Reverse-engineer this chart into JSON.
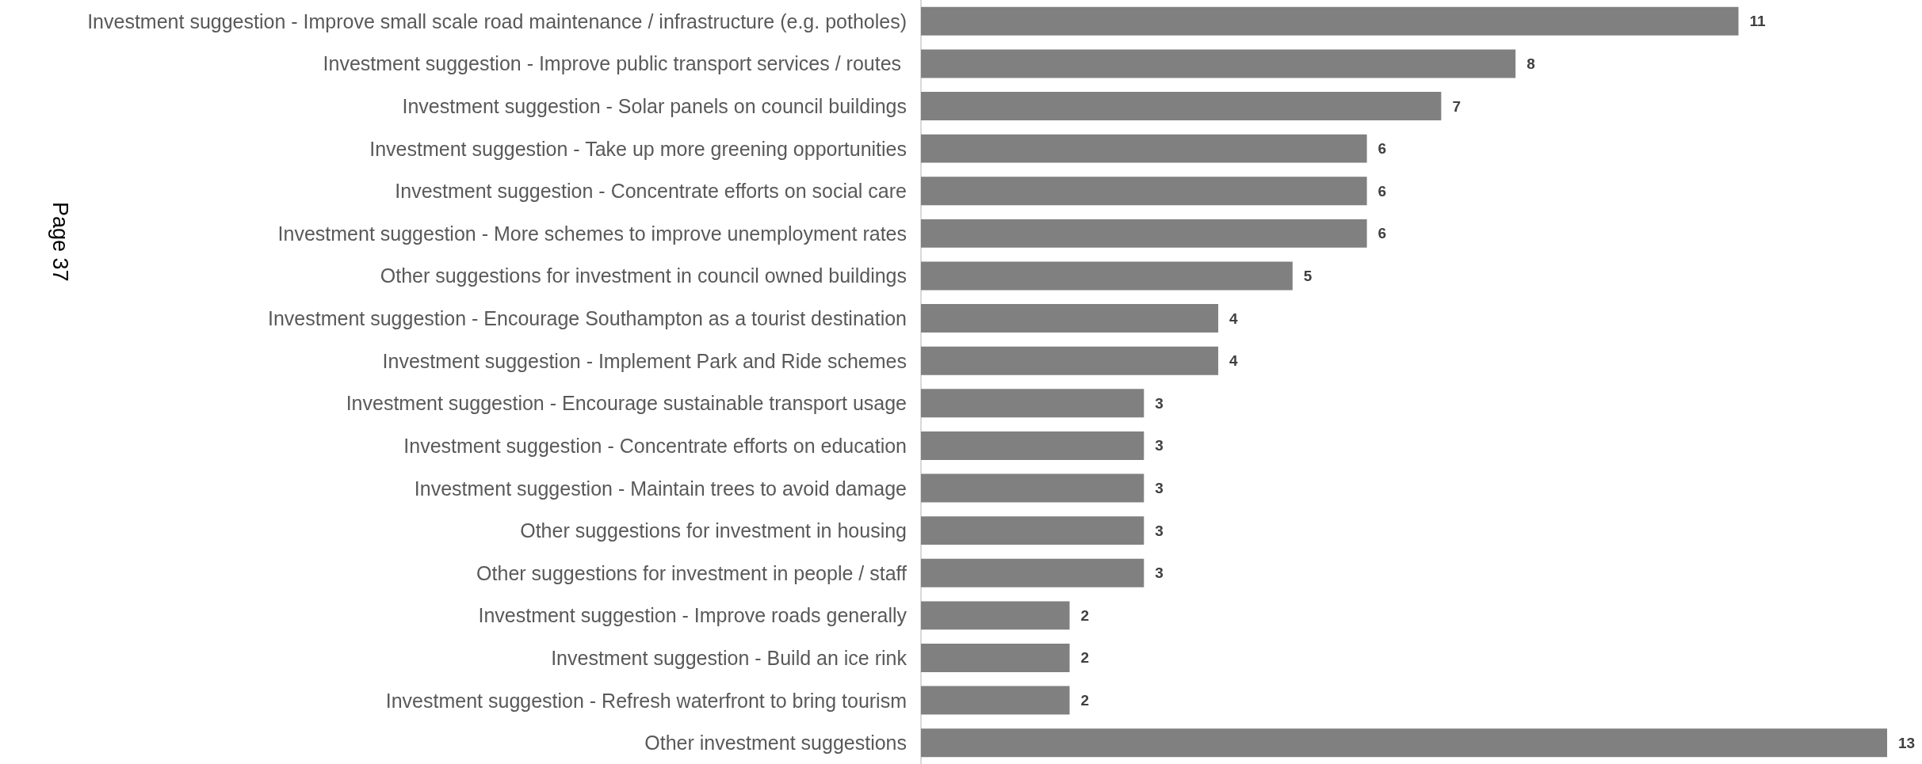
{
  "chart_data": {
    "type": "bar",
    "orientation": "horizontal",
    "categories": [
      "Investment suggestion - Improve small scale road maintenance / infrastructure (e.g. potholes)",
      "Investment suggestion - Improve public transport services / routes ",
      "Investment suggestion - Solar panels on council buildings",
      "Investment suggestion - Take up more greening opportunities",
      "Investment suggestion - Concentrate efforts on social care",
      "Investment suggestion - More schemes to improve unemployment rates",
      "Other suggestions for investment in council owned buildings",
      "Investment suggestion - Encourage Southampton as a tourist destination",
      "Investment suggestion - Implement Park and Ride schemes",
      "Investment suggestion - Encourage sustainable transport usage",
      "Investment suggestion - Concentrate efforts on education",
      "Investment suggestion - Maintain trees to avoid damage",
      "Other suggestions for investment in housing",
      "Other suggestions for investment in people / staff",
      "Investment suggestion - Improve roads generally",
      "Investment suggestion - Build an ice rink",
      "Investment suggestion - Refresh waterfront to bring tourism",
      "Other investment suggestions"
    ],
    "values": [
      11,
      8,
      7,
      6,
      6,
      6,
      5,
      4,
      4,
      3,
      3,
      3,
      3,
      3,
      2,
      2,
      2,
      13
    ],
    "color": "#808080",
    "data_labels": true,
    "tick_labels": "y",
    "annotations": [
      "Page 37"
    ]
  }
}
